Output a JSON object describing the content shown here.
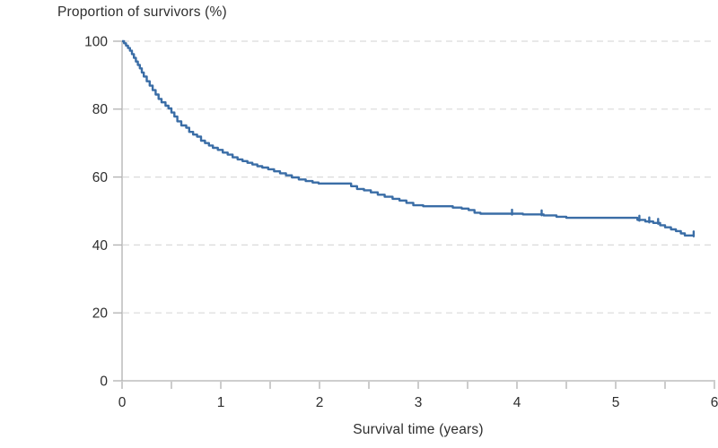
{
  "page": {
    "background_color": "#ffffff"
  },
  "chart_data": {
    "type": "line",
    "variant": "kaplan_meier_step_curve",
    "title": "Proportion of survivors (%)",
    "xlabel": "Survival time (years)",
    "ylabel": "Proportion of survivors (%)",
    "xlim": [
      0,
      6
    ],
    "ylim": [
      0,
      100
    ],
    "x_major_ticks": [
      0,
      1,
      2,
      3,
      4,
      5,
      6
    ],
    "x_minor_ticks": [
      0.5,
      1.5,
      2.5,
      3.5,
      4.5,
      5.5
    ],
    "y_ticks": [
      0,
      20,
      40,
      60,
      80,
      100
    ],
    "grid": {
      "horizontal_dashed_at": [
        20,
        40,
        60,
        80,
        100
      ],
      "vertical": false
    },
    "legend_position": "none",
    "colors": {
      "line": "#3a6da6",
      "axis": "#b0b0b0",
      "grid": "#dadada",
      "text": "#2e2e2e"
    },
    "series": [
      {
        "name": "Proportion of survivors",
        "step_points": [
          [
            0.0,
            100.0
          ],
          [
            0.02,
            99.4
          ],
          [
            0.04,
            98.7
          ],
          [
            0.06,
            98.0
          ],
          [
            0.08,
            97.2
          ],
          [
            0.1,
            96.2
          ],
          [
            0.12,
            95.1
          ],
          [
            0.14,
            94.0
          ],
          [
            0.16,
            93.0
          ],
          [
            0.18,
            92.0
          ],
          [
            0.2,
            90.8
          ],
          [
            0.22,
            89.6
          ],
          [
            0.25,
            88.2
          ],
          [
            0.28,
            86.9
          ],
          [
            0.31,
            85.6
          ],
          [
            0.34,
            84.3
          ],
          [
            0.37,
            83.0
          ],
          [
            0.4,
            82.0
          ],
          [
            0.44,
            81.0
          ],
          [
            0.47,
            80.2
          ],
          [
            0.5,
            79.0
          ],
          [
            0.53,
            77.8
          ],
          [
            0.56,
            76.4
          ],
          [
            0.6,
            75.2
          ],
          [
            0.65,
            74.5
          ],
          [
            0.68,
            73.3
          ],
          [
            0.72,
            72.5
          ],
          [
            0.76,
            71.9
          ],
          [
            0.8,
            70.7
          ],
          [
            0.84,
            70.0
          ],
          [
            0.88,
            69.3
          ],
          [
            0.92,
            68.6
          ],
          [
            0.97,
            68.0
          ],
          [
            1.02,
            67.2
          ],
          [
            1.07,
            66.6
          ],
          [
            1.12,
            65.8
          ],
          [
            1.17,
            65.2
          ],
          [
            1.22,
            64.7
          ],
          [
            1.27,
            64.2
          ],
          [
            1.32,
            63.7
          ],
          [
            1.37,
            63.2
          ],
          [
            1.42,
            62.8
          ],
          [
            1.48,
            62.3
          ],
          [
            1.54,
            61.7
          ],
          [
            1.6,
            61.1
          ],
          [
            1.66,
            60.5
          ],
          [
            1.72,
            59.9
          ],
          [
            1.79,
            59.3
          ],
          [
            1.86,
            58.8
          ],
          [
            1.93,
            58.4
          ],
          [
            1.99,
            58.1
          ],
          [
            2.32,
            57.3
          ],
          [
            2.38,
            56.5
          ],
          [
            2.45,
            56.1
          ],
          [
            2.52,
            55.5
          ],
          [
            2.59,
            54.8
          ],
          [
            2.66,
            54.2
          ],
          [
            2.74,
            53.6
          ],
          [
            2.81,
            53.1
          ],
          [
            2.88,
            52.4
          ],
          [
            2.95,
            51.7
          ],
          [
            3.05,
            51.4
          ],
          [
            3.35,
            51.0
          ],
          [
            3.44,
            50.7
          ],
          [
            3.51,
            50.3
          ],
          [
            3.57,
            49.5
          ],
          [
            3.63,
            49.2
          ],
          [
            4.06,
            49.0
          ],
          [
            4.27,
            48.7
          ],
          [
            4.4,
            48.3
          ],
          [
            4.5,
            48.0
          ],
          [
            5.22,
            47.4
          ],
          [
            5.3,
            46.9
          ],
          [
            5.38,
            46.5
          ],
          [
            5.45,
            45.8
          ],
          [
            5.5,
            45.2
          ],
          [
            5.56,
            44.6
          ],
          [
            5.61,
            44.1
          ],
          [
            5.66,
            43.4
          ],
          [
            5.7,
            42.8
          ],
          [
            5.8,
            42.8
          ]
        ]
      }
    ],
    "censor_marks": [
      [
        3.95,
        49.2
      ],
      [
        4.25,
        49.0
      ],
      [
        5.24,
        47.4
      ],
      [
        5.34,
        46.9
      ],
      [
        5.43,
        46.5
      ],
      [
        5.79,
        42.8
      ]
    ]
  }
}
